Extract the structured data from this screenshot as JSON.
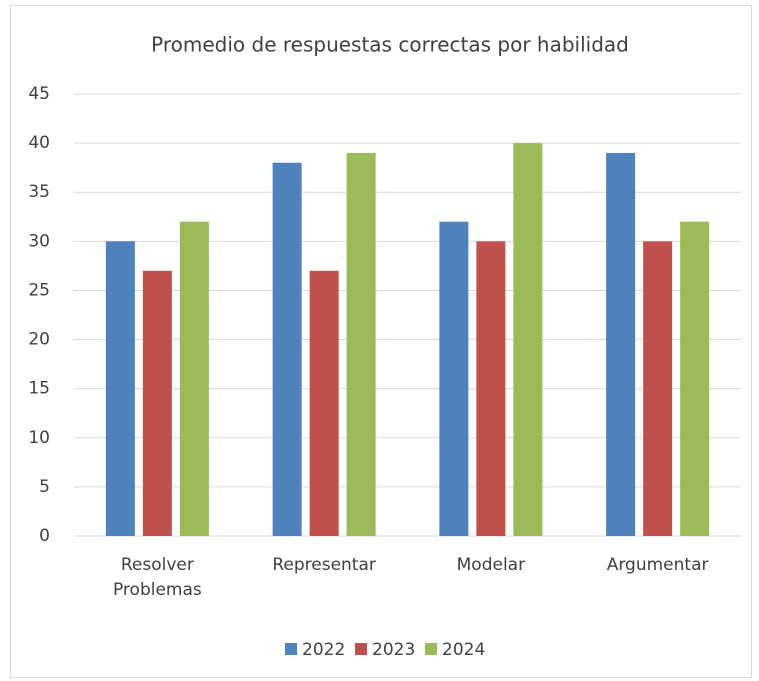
{
  "chart_data": {
    "type": "bar",
    "title": "Promedio de respuestas correctas por habilidad",
    "categories": [
      "Resolver Problemas",
      "Representar",
      "Modelar",
      "Argumentar"
    ],
    "series": [
      {
        "name": "2022",
        "color": "#4f81bd",
        "values": [
          30,
          38,
          32,
          39
        ]
      },
      {
        "name": "2023",
        "color": "#c0504d",
        "values": [
          27,
          27,
          30,
          30
        ]
      },
      {
        "name": "2024",
        "color": "#9bbb59",
        "values": [
          32,
          39,
          40,
          32
        ]
      }
    ],
    "ylim": [
      0,
      45
    ],
    "yticks": [
      0,
      5,
      10,
      15,
      20,
      25,
      30,
      35,
      40,
      45
    ],
    "grid": true,
    "legend": "bottom"
  }
}
